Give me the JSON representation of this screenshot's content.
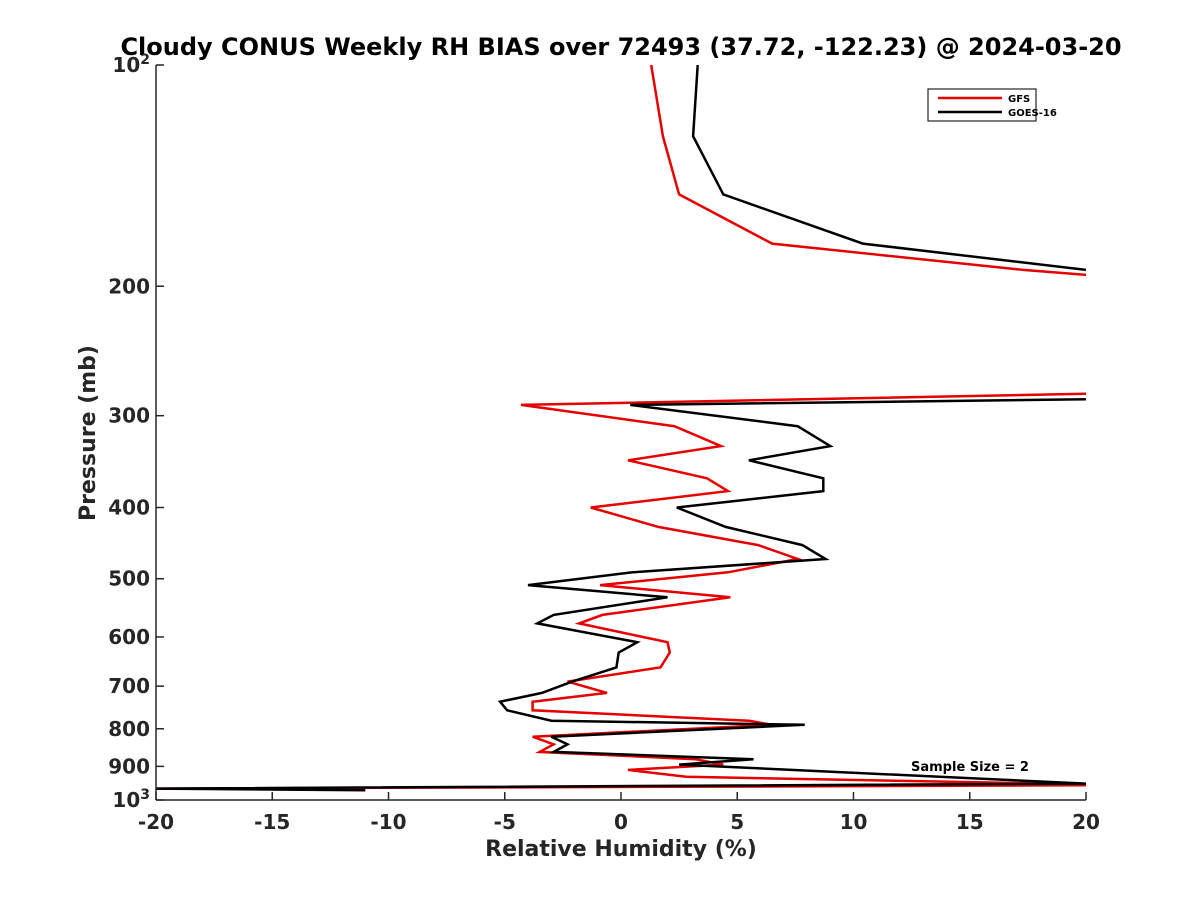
{
  "chart_data": {
    "type": "line",
    "title": "Cloudy CONUS Weekly RH BIAS over 72493 (37.72, -122.23) @ 2024-03-20",
    "xlabel": "Relative Humidity (%)",
    "ylabel": "Pressure (mb)",
    "xlim": [
      -20,
      20
    ],
    "ylim": [
      100,
      1000
    ],
    "y_scale": "log",
    "y_reversed": true,
    "grid": false,
    "legend_position": "top-right",
    "annotation": "Sample Size = 2",
    "x_ticks": [
      "-20",
      "-15",
      "-10",
      "-5",
      "0",
      "5",
      "10",
      "15",
      "20"
    ],
    "x_tick_values": [
      -20,
      -15,
      -10,
      -5,
      0,
      5,
      10,
      15,
      20
    ],
    "y_ticks": [
      {
        "value": 100,
        "label": "10",
        "sup": "2"
      },
      {
        "value": 200,
        "label": "200",
        "sup": ""
      },
      {
        "value": 300,
        "label": "300",
        "sup": ""
      },
      {
        "value": 400,
        "label": "400",
        "sup": ""
      },
      {
        "value": 500,
        "label": "500",
        "sup": ""
      },
      {
        "value": 600,
        "label": "600",
        "sup": ""
      },
      {
        "value": 700,
        "label": "700",
        "sup": ""
      },
      {
        "value": 800,
        "label": "800",
        "sup": ""
      },
      {
        "value": 900,
        "label": "900",
        "sup": ""
      },
      {
        "value": 1000,
        "label": "10",
        "sup": "3"
      }
    ],
    "series": [
      {
        "name": "GFS",
        "color": "#e60000",
        "segments": [
          [
            [
              1.3,
              100
            ],
            [
              1.8,
              125
            ],
            [
              2.5,
              150
            ],
            [
              6.5,
              175
            ],
            [
              17.3,
              190
            ],
            [
              20,
              193
            ]
          ],
          [
            [
              20,
              280
            ],
            [
              -4.3,
              290
            ],
            [
              2.3,
              310
            ],
            [
              4.3,
              330
            ],
            [
              0.3,
              345
            ],
            [
              3.7,
              365
            ],
            [
              4.6,
              380
            ],
            [
              -1.3,
              400
            ],
            [
              1.6,
              425
            ],
            [
              5.9,
              450
            ],
            [
              7.6,
              470
            ],
            [
              4.6,
              490
            ],
            [
              -0.9,
              510
            ],
            [
              4.7,
              530
            ],
            [
              -0.8,
              560
            ],
            [
              -1.8,
              575
            ],
            [
              2,
              610
            ],
            [
              2.1,
              630
            ],
            [
              1.7,
              660
            ],
            [
              -2.3,
              690
            ],
            [
              -0.6,
              715
            ],
            [
              -3.8,
              735
            ],
            [
              -3.8,
              755
            ],
            [
              5.5,
              780
            ],
            [
              6.5,
              790
            ],
            [
              -3.8,
              820
            ],
            [
              -2.9,
              840
            ],
            [
              -3.5,
              860
            ],
            [
              3.2,
              880
            ],
            [
              4.4,
              895
            ],
            [
              0.3,
              910
            ],
            [
              2.8,
              930
            ],
            [
              18.4,
              950
            ],
            [
              20,
              955
            ],
            [
              -20,
              965
            ]
          ]
        ]
      },
      {
        "name": "GOES-16",
        "color": "#000000",
        "segments": [
          [
            [
              3.3,
              100
            ],
            [
              3.1,
              125
            ],
            [
              4.4,
              150
            ],
            [
              10.4,
              175
            ],
            [
              20,
              190
            ]
          ],
          [
            [
              20,
              285
            ],
            [
              0.4,
              290
            ],
            [
              7.6,
              310
            ],
            [
              9,
              330
            ],
            [
              5.5,
              345
            ],
            [
              8.7,
              365
            ],
            [
              8.7,
              380
            ],
            [
              2.4,
              400
            ],
            [
              4.5,
              425
            ],
            [
              7.8,
              450
            ],
            [
              8.8,
              470
            ],
            [
              0.5,
              490
            ],
            [
              -4,
              510
            ],
            [
              2,
              530
            ],
            [
              -2.9,
              560
            ],
            [
              -3.6,
              575
            ],
            [
              0.7,
              610
            ],
            [
              -0.1,
              630
            ],
            [
              -0.2,
              660
            ],
            [
              -2.1,
              690
            ],
            [
              -3.4,
              715
            ],
            [
              -5.2,
              735
            ],
            [
              -4.9,
              755
            ],
            [
              -3,
              780
            ],
            [
              7.9,
              790
            ],
            [
              -3,
              820
            ],
            [
              -2.3,
              840
            ],
            [
              -2.9,
              860
            ],
            [
              5.7,
              880
            ],
            [
              2.5,
              895
            ],
            [
              20,
              950
            ],
            [
              -20,
              965
            ],
            [
              -11,
              970
            ]
          ]
        ]
      }
    ]
  }
}
